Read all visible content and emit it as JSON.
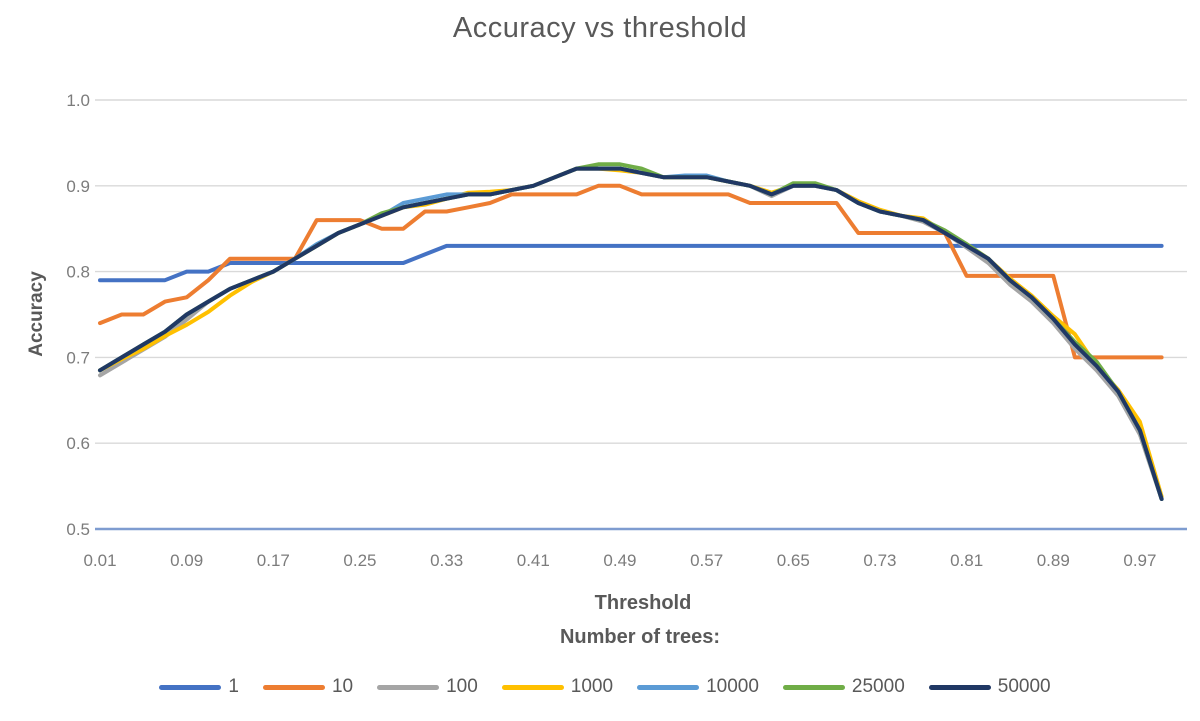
{
  "chart_data": {
    "type": "line",
    "title": "Accuracy vs threshold",
    "xlabel": "Threshold",
    "ylabel": "Accuracy",
    "legend_title": "Number of trees:",
    "legend_position": "bottom",
    "grid": "horizontal-only",
    "xlim": [
      0.01,
      0.99
    ],
    "ylim": [
      0.5,
      1.0
    ],
    "x_tick_labels": [
      "0.01",
      "0.09",
      "0.17",
      "0.25",
      "0.33",
      "0.41",
      "0.49",
      "0.57",
      "0.65",
      "0.73",
      "0.81",
      "0.89",
      "0.97"
    ],
    "x_tick_values": [
      0.01,
      0.09,
      0.17,
      0.25,
      0.33,
      0.41,
      0.49,
      0.57,
      0.65,
      0.73,
      0.81,
      0.89,
      0.97
    ],
    "y_tick_labels": [
      "1.0",
      "0.9",
      "0.8",
      "0.7",
      "0.6",
      "0.5"
    ],
    "y_tick_values": [
      1.0,
      0.9,
      0.8,
      0.7,
      0.6,
      0.5
    ],
    "baseline": {
      "y": 0.5,
      "color": "#7E9CD0"
    },
    "x": [
      0.01,
      0.03,
      0.05,
      0.07,
      0.09,
      0.11,
      0.13,
      0.15,
      0.17,
      0.19,
      0.21,
      0.23,
      0.25,
      0.27,
      0.29,
      0.31,
      0.33,
      0.35,
      0.37,
      0.39,
      0.41,
      0.43,
      0.45,
      0.47,
      0.49,
      0.51,
      0.53,
      0.55,
      0.57,
      0.59,
      0.61,
      0.63,
      0.65,
      0.67,
      0.69,
      0.71,
      0.73,
      0.75,
      0.77,
      0.79,
      0.81,
      0.83,
      0.85,
      0.87,
      0.89,
      0.91,
      0.93,
      0.95,
      0.97,
      0.99
    ],
    "series": [
      {
        "name": "1",
        "color": "#4472C4",
        "values": [
          0.79,
          0.79,
          0.79,
          0.79,
          0.8,
          0.8,
          0.81,
          0.81,
          0.81,
          0.81,
          0.81,
          0.81,
          0.81,
          0.81,
          0.81,
          0.82,
          0.83,
          0.83,
          0.83,
          0.83,
          0.83,
          0.83,
          0.83,
          0.83,
          0.83,
          0.83,
          0.83,
          0.83,
          0.83,
          0.83,
          0.83,
          0.83,
          0.83,
          0.83,
          0.83,
          0.83,
          0.83,
          0.83,
          0.83,
          0.83,
          0.83,
          0.83,
          0.83,
          0.83,
          0.83,
          0.83,
          0.83,
          0.83,
          0.83,
          0.83
        ]
      },
      {
        "name": "10",
        "color": "#ED7D31",
        "values": [
          0.74,
          0.75,
          0.75,
          0.765,
          0.77,
          0.79,
          0.815,
          0.815,
          0.815,
          0.815,
          0.86,
          0.86,
          0.86,
          0.85,
          0.85,
          0.87,
          0.87,
          0.875,
          0.88,
          0.89,
          0.89,
          0.89,
          0.89,
          0.9,
          0.9,
          0.89,
          0.89,
          0.89,
          0.89,
          0.89,
          0.88,
          0.88,
          0.88,
          0.88,
          0.88,
          0.845,
          0.845,
          0.845,
          0.845,
          0.845,
          0.795,
          0.795,
          0.795,
          0.795,
          0.795,
          0.7,
          0.7,
          0.7,
          0.7,
          0.7
        ]
      },
      {
        "name": "100",
        "color": "#A5A5A5",
        "values": [
          0.679,
          0.694,
          0.709,
          0.724,
          0.744,
          0.765,
          0.78,
          0.79,
          0.8,
          0.815,
          0.83,
          0.845,
          0.855,
          0.865,
          0.875,
          0.88,
          0.885,
          0.89,
          0.89,
          0.895,
          0.9,
          0.91,
          0.92,
          0.92,
          0.92,
          0.915,
          0.91,
          0.91,
          0.91,
          0.905,
          0.9,
          0.888,
          0.9,
          0.9,
          0.895,
          0.88,
          0.87,
          0.865,
          0.858,
          0.845,
          0.828,
          0.81,
          0.785,
          0.765,
          0.74,
          0.71,
          0.685,
          0.655,
          0.61,
          0.535
        ]
      },
      {
        "name": "1000",
        "color": "#FFC000",
        "values": [
          0.685,
          0.698,
          0.71,
          0.725,
          0.738,
          0.753,
          0.772,
          0.788,
          0.8,
          0.815,
          0.83,
          0.845,
          0.855,
          0.865,
          0.875,
          0.878,
          0.885,
          0.892,
          0.893,
          0.895,
          0.9,
          0.91,
          0.92,
          0.92,
          0.918,
          0.915,
          0.91,
          0.91,
          0.91,
          0.905,
          0.9,
          0.892,
          0.9,
          0.9,
          0.895,
          0.882,
          0.872,
          0.865,
          0.862,
          0.845,
          0.832,
          0.815,
          0.792,
          0.772,
          0.748,
          0.727,
          0.69,
          0.662,
          0.625,
          0.538
        ]
      },
      {
        "name": "10000",
        "color": "#5B9BD5",
        "values": [
          0.685,
          0.7,
          0.715,
          0.73,
          0.75,
          0.765,
          0.78,
          0.79,
          0.8,
          0.815,
          0.832,
          0.845,
          0.855,
          0.865,
          0.88,
          0.885,
          0.89,
          0.89,
          0.89,
          0.895,
          0.9,
          0.91,
          0.92,
          0.92,
          0.92,
          0.915,
          0.91,
          0.912,
          0.912,
          0.905,
          0.9,
          0.89,
          0.9,
          0.9,
          0.895,
          0.88,
          0.87,
          0.865,
          0.86,
          0.845,
          0.83,
          0.815,
          0.79,
          0.77,
          0.745,
          0.715,
          0.69,
          0.66,
          0.615,
          0.535
        ]
      },
      {
        "name": "25000",
        "color": "#70AD47",
        "values": [
          0.685,
          0.7,
          0.715,
          0.73,
          0.75,
          0.765,
          0.78,
          0.79,
          0.8,
          0.815,
          0.83,
          0.845,
          0.855,
          0.868,
          0.875,
          0.88,
          0.885,
          0.89,
          0.89,
          0.895,
          0.9,
          0.91,
          0.92,
          0.925,
          0.925,
          0.92,
          0.91,
          0.91,
          0.91,
          0.905,
          0.9,
          0.89,
          0.903,
          0.903,
          0.895,
          0.88,
          0.87,
          0.865,
          0.86,
          0.848,
          0.832,
          0.815,
          0.79,
          0.77,
          0.745,
          0.718,
          0.695,
          0.66,
          0.615,
          0.535
        ]
      },
      {
        "name": "50000",
        "color": "#203864",
        "values": [
          0.685,
          0.7,
          0.715,
          0.73,
          0.75,
          0.765,
          0.78,
          0.79,
          0.8,
          0.815,
          0.83,
          0.845,
          0.855,
          0.865,
          0.875,
          0.88,
          0.885,
          0.89,
          0.89,
          0.895,
          0.9,
          0.91,
          0.92,
          0.92,
          0.92,
          0.915,
          0.91,
          0.91,
          0.91,
          0.905,
          0.9,
          0.89,
          0.9,
          0.9,
          0.895,
          0.88,
          0.87,
          0.865,
          0.86,
          0.845,
          0.83,
          0.815,
          0.79,
          0.77,
          0.745,
          0.715,
          0.69,
          0.66,
          0.615,
          0.535
        ]
      }
    ],
    "colors": {
      "grid": "#D9D9D9",
      "tick_text": "#7C7C7C",
      "title_text": "#595959"
    }
  }
}
